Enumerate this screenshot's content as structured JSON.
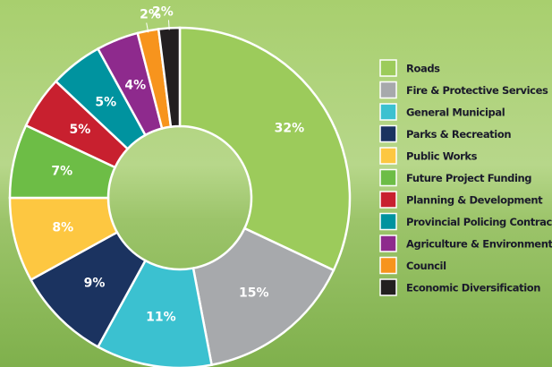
{
  "chart_data": {
    "type": "donut",
    "categories": [
      "Roads",
      "Fire & Protective Services",
      "General Municipal",
      "Parks & Recreation",
      "Public Works",
      "Future Project Funding",
      "Planning & Development",
      "Provincial Policing Contract",
      "Agriculture & Environment",
      "Council",
      "Economic Diversification"
    ],
    "values": [
      32,
      15,
      11,
      9,
      8,
      7,
      5,
      5,
      4,
      2,
      2
    ],
    "value_labels": [
      "32%",
      "15%",
      "11%",
      "9%",
      "8%",
      "7%",
      "5%",
      "5%",
      "4%",
      "2%",
      "2%"
    ],
    "colors": [
      "#9ccb5b",
      "#a7a9ac",
      "#3bc1d0",
      "#1b3360",
      "#fdc741",
      "#6dbd46",
      "#c8202f",
      "#00939f",
      "#8e2a8d",
      "#f7941d",
      "#231f20"
    ],
    "legend": "right"
  }
}
